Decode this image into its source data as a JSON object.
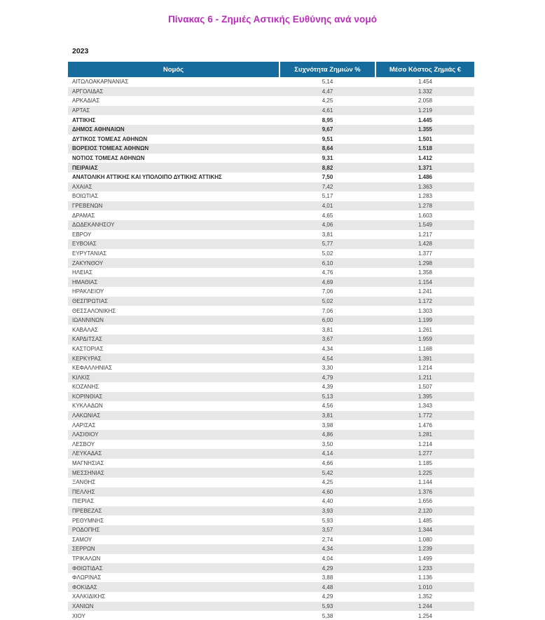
{
  "page": {
    "title": "Πίνακας 6 - Ζημιές Αστικής Ευθύνης ανά νομό",
    "year": "2023"
  },
  "colors": {
    "title_accent": "#BB2BBB",
    "header_bg": "#176C9E",
    "header_text": "#FFFFFF",
    "row_alt_bg": "#E7E7E7",
    "body_text": "#3E3E3E"
  },
  "table": {
    "columns": [
      "Νομός",
      "Συχνότητα Ζημιών %",
      "Μέσο Κόστος Ζημιάς  €"
    ],
    "rows": [
      {
        "name": "ΑΙΤΩΛΟΑΚΑΡΝΑΝΙΑΣ",
        "frequency": "5,14",
        "cost": "1.454",
        "bold": false
      },
      {
        "name": "ΑΡΓΟΛΙΔΑΣ",
        "frequency": "4,47",
        "cost": "1.332",
        "bold": false
      },
      {
        "name": "ΑΡΚΑΔΙΑΣ",
        "frequency": "4,25",
        "cost": "2.058",
        "bold": false
      },
      {
        "name": "ΑΡΤΑΣ",
        "frequency": "4,61",
        "cost": "1.219",
        "bold": false
      },
      {
        "name": "ΑΤΤΙΚΗΣ",
        "frequency": "8,95",
        "cost": "1.445",
        "bold": true
      },
      {
        "name": "ΔΗΜΟΣ ΑΘΗΝΑΙΩΝ",
        "frequency": "9,67",
        "cost": "1.355",
        "bold": true
      },
      {
        "name": "ΔΥΤΙΚΟΣ ΤΟΜΕΑΣ ΑΘΗΝΩΝ",
        "frequency": "9,51",
        "cost": "1.501",
        "bold": true
      },
      {
        "name": "ΒΟΡΕΙΟΣ ΤΟΜΕΑΣ ΑΘΗΝΩΝ",
        "frequency": "8,64",
        "cost": "1.518",
        "bold": true
      },
      {
        "name": "ΝΟΤΙΟΣ ΤΟΜΕΑΣ ΑΘΗΝΩΝ",
        "frequency": "9,31",
        "cost": "1.412",
        "bold": true
      },
      {
        "name": "ΠΕΙΡΑΙΑΣ",
        "frequency": "8,82",
        "cost": "1.371",
        "bold": true
      },
      {
        "name": "ΑΝΑΤΟΛΙΚΗ ΑΤΤΙΚΗΣ ΚΑΙ ΥΠΟΛΟΙΠΟ ΔΥΤΙΚΗΣ ΑΤΤΙΚΗΣ",
        "frequency": "7,50",
        "cost": "1.486",
        "bold": true
      },
      {
        "name": "ΑΧΑΙΑΣ",
        "frequency": "7,42",
        "cost": "1.363",
        "bold": false
      },
      {
        "name": "ΒΟΙΩΤΙΑΣ",
        "frequency": "5,17",
        "cost": "1.283",
        "bold": false
      },
      {
        "name": "ΓΡΕΒΕΝΩΝ",
        "frequency": "4,01",
        "cost": "1.278",
        "bold": false
      },
      {
        "name": "ΔΡΑΜΑΣ",
        "frequency": "4,65",
        "cost": "1.603",
        "bold": false
      },
      {
        "name": "ΔΩΔΕΚΑΝΗΣΟΥ",
        "frequency": "4,06",
        "cost": "1.549",
        "bold": false
      },
      {
        "name": "ΕΒΡΟΥ",
        "frequency": "3,81",
        "cost": "1.217",
        "bold": false
      },
      {
        "name": "ΕΥΒΟΙΑΣ",
        "frequency": "5,77",
        "cost": "1.428",
        "bold": false
      },
      {
        "name": "ΕΥΡΥΤΑΝΙΑΣ",
        "frequency": "5,02",
        "cost": "1.377",
        "bold": false
      },
      {
        "name": "ΖΑΚΥΝΘΟΥ",
        "frequency": "6,10",
        "cost": "1.298",
        "bold": false
      },
      {
        "name": "ΗΛΕΙΑΣ",
        "frequency": "4,76",
        "cost": "1.358",
        "bold": false
      },
      {
        "name": "ΗΜΑΘΙΑΣ",
        "frequency": "4,69",
        "cost": "1.154",
        "bold": false
      },
      {
        "name": "ΗΡΑΚΛΕΙΟΥ",
        "frequency": "7,06",
        "cost": "1.241",
        "bold": false
      },
      {
        "name": "ΘΕΣΠΡΩΤΙΑΣ",
        "frequency": "5,02",
        "cost": "1.172",
        "bold": false
      },
      {
        "name": "ΘΕΣΣΑΛΟΝΙΚΗΣ",
        "frequency": "7,06",
        "cost": "1.303",
        "bold": false
      },
      {
        "name": "ΙΩΑΝΝΙΝΩΝ",
        "frequency": "6,00",
        "cost": "1.199",
        "bold": false
      },
      {
        "name": "ΚΑΒΑΛΑΣ",
        "frequency": "3,81",
        "cost": "1.261",
        "bold": false
      },
      {
        "name": "ΚΑΡΔΙΤΣΑΣ",
        "frequency": "3,67",
        "cost": "1.959",
        "bold": false
      },
      {
        "name": "ΚΑΣΤΟΡΙΑΣ",
        "frequency": "4,34",
        "cost": "1.168",
        "bold": false
      },
      {
        "name": "ΚΕΡΚΥΡΑΣ",
        "frequency": "4,54",
        "cost": "1.391",
        "bold": false
      },
      {
        "name": "ΚΕΦΑΛΛΗΝΙΑΣ",
        "frequency": "3,30",
        "cost": "1.214",
        "bold": false
      },
      {
        "name": "ΚΙΛΚΙΣ",
        "frequency": "4,79",
        "cost": "1.211",
        "bold": false
      },
      {
        "name": "ΚΟΖΑΝΗΣ",
        "frequency": "4,39",
        "cost": "1.507",
        "bold": false
      },
      {
        "name": "ΚΟΡΙΝΘΙΑΣ",
        "frequency": "5,13",
        "cost": "1.395",
        "bold": false
      },
      {
        "name": "ΚΥΚΛΑΔΩΝ",
        "frequency": "4,56",
        "cost": "1.343",
        "bold": false
      },
      {
        "name": "ΛΑΚΩΝΙΑΣ",
        "frequency": "3,81",
        "cost": "1.772",
        "bold": false
      },
      {
        "name": "ΛΑΡΙΣΑΣ",
        "frequency": "3,98",
        "cost": "1.476",
        "bold": false
      },
      {
        "name": "ΛΑΣΙΘΙΟΥ",
        "frequency": "4,86",
        "cost": "1.281",
        "bold": false
      },
      {
        "name": "ΛΕΣΒΟΥ",
        "frequency": "3,50",
        "cost": "1.214",
        "bold": false
      },
      {
        "name": "ΛΕΥΚΑΔΑΣ",
        "frequency": "4,14",
        "cost": "1.277",
        "bold": false
      },
      {
        "name": "ΜΑΓΝΗΣΙΑΣ",
        "frequency": "4,66",
        "cost": "1.185",
        "bold": false
      },
      {
        "name": "ΜΕΣΣΗΝΙΑΣ",
        "frequency": "5,42",
        "cost": "1.225",
        "bold": false
      },
      {
        "name": "ΞΑΝΘΗΣ",
        "frequency": "4,25",
        "cost": "1.144",
        "bold": false
      },
      {
        "name": "ΠΕΛΛΗΣ",
        "frequency": "4,60",
        "cost": "1.376",
        "bold": false
      },
      {
        "name": "ΠΙΕΡΙΑΣ",
        "frequency": "4,40",
        "cost": "1.656",
        "bold": false
      },
      {
        "name": "ΠΡΕΒΕΖΑΣ",
        "frequency": "3,93",
        "cost": "2.120",
        "bold": false
      },
      {
        "name": "ΡΕΘΥΜΝΗΣ",
        "frequency": "5,93",
        "cost": "1.485",
        "bold": false
      },
      {
        "name": "ΡΟΔΟΠΗΣ",
        "frequency": "3,57",
        "cost": "1.344",
        "bold": false
      },
      {
        "name": "ΣΑΜΟΥ",
        "frequency": "2,74",
        "cost": "1.080",
        "bold": false
      },
      {
        "name": "ΣΕΡΡΩΝ",
        "frequency": "4,34",
        "cost": "1.239",
        "bold": false
      },
      {
        "name": "ΤΡΙΚΑΛΩΝ",
        "frequency": "4,04",
        "cost": "1.499",
        "bold": false
      },
      {
        "name": "ΦΘΙΩΤΙΔΑΣ",
        "frequency": "4,29",
        "cost": "1.233",
        "bold": false
      },
      {
        "name": "ΦΛΩΡΙΝΑΣ",
        "frequency": "3,88",
        "cost": "1.136",
        "bold": false
      },
      {
        "name": "ΦΟΚΙΔΑΣ",
        "frequency": "4,48",
        "cost": "1.010",
        "bold": false
      },
      {
        "name": "ΧΑΛΚΙΔΙΚΗΣ",
        "frequency": "4,29",
        "cost": "1.352",
        "bold": false
      },
      {
        "name": "ΧΑΝΙΩΝ",
        "frequency": "5,93",
        "cost": "1.244",
        "bold": false
      },
      {
        "name": "ΧΙΟΥ",
        "frequency": "5,38",
        "cost": "1.254",
        "bold": false
      }
    ]
  }
}
